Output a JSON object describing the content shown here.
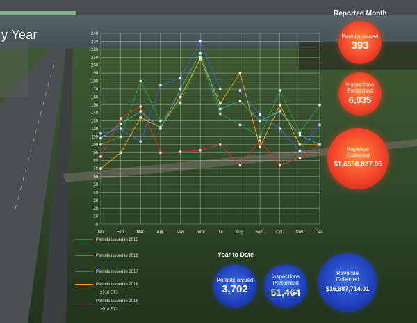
{
  "page_title": "y Year",
  "colors": {
    "series_2015": "#e0312b",
    "series_2016": "#2f9d4a",
    "series_2017": "#3f5fd8",
    "series_2018": "#f0a020",
    "series_2018_etj": "#3fa6a6",
    "reported_circle": "#f2452a",
    "ytd_circle": "#1f3fb8"
  },
  "reported_month": {
    "title": "Reported Month",
    "permits": {
      "label": "Permits Issued",
      "value": "393"
    },
    "inspections": {
      "label": "Inspections Performed",
      "value": "6,035"
    },
    "revenue": {
      "label": "Revenue Collected",
      "value": "$1,6550,827.05"
    }
  },
  "year_to_date": {
    "title": "Year to Date",
    "permits": {
      "label": "Permits Issued",
      "value": "3,702"
    },
    "inspections": {
      "label": "Inspections Performed",
      "value": "51,464"
    },
    "revenue": {
      "label": "Revenue Collected",
      "value": "$16,887,714.01"
    }
  },
  "legend": [
    {
      "label": "Permits issued in 2015",
      "color": "#e0312b"
    },
    {
      "label": "Permits issued in 2016",
      "color": "#2f9d4a"
    },
    {
      "label": "Permits issued in 2017",
      "color": "#3f5fd8"
    },
    {
      "label": "Permits issued in 2018",
      "color": "#f0a020"
    },
    {
      "label": "2018 ETJ",
      "color": "#f0a020"
    },
    {
      "label": "Permits issued in 2018",
      "color": "#3fa6a6"
    },
    {
      "label": "2018 ETJ",
      "color": "#3fa6a6"
    }
  ],
  "chart_data": {
    "type": "line",
    "categories": [
      "Jan.",
      "Feb.",
      "Mar.",
      "Apr.",
      "May",
      "June",
      "Jul",
      "Aug.",
      "Sept.",
      "Oct.",
      "Nov.",
      "Dec."
    ],
    "ylim": [
      0,
      240
    ],
    "yticks": [
      0,
      10,
      20,
      30,
      40,
      50,
      60,
      70,
      80,
      90,
      100,
      110,
      120,
      130,
      140,
      150,
      160,
      170,
      180,
      190,
      200,
      210,
      220,
      230,
      240
    ],
    "grid": true,
    "series": [
      {
        "name": "Permits issued in 2015",
        "color": "#e0312b",
        "values": [
          85,
          133,
          148,
          90,
          91,
          93,
          100,
          74,
          105,
          74,
          83,
          100
        ]
      },
      {
        "name": "Permits issued in 2016",
        "color": "#2f9d4a",
        "values": [
          100,
          110,
          180,
          130,
          153,
          210,
          139,
          125,
          110,
          168,
          115,
          150
        ]
      },
      {
        "name": "Permits issued in 2017",
        "color": "#3f5fd8",
        "values": [
          114,
          120,
          104,
          175,
          184,
          230,
          170,
          168,
          138,
          120,
          92,
          125
        ]
      },
      {
        "name": "Permits issued in 2018",
        "color": "#f0a020",
        "values": [
          70,
          90,
          134,
          122,
          160,
          208,
          152,
          190,
          97,
          150,
          100,
          100
        ]
      },
      {
        "name": "Permits issued in 2018",
        "color": "#3fa6a6",
        "values": [
          108,
          126,
          142,
          120,
          170,
          215,
          145,
          155,
          130,
          142,
          112,
          100
        ]
      }
    ]
  }
}
